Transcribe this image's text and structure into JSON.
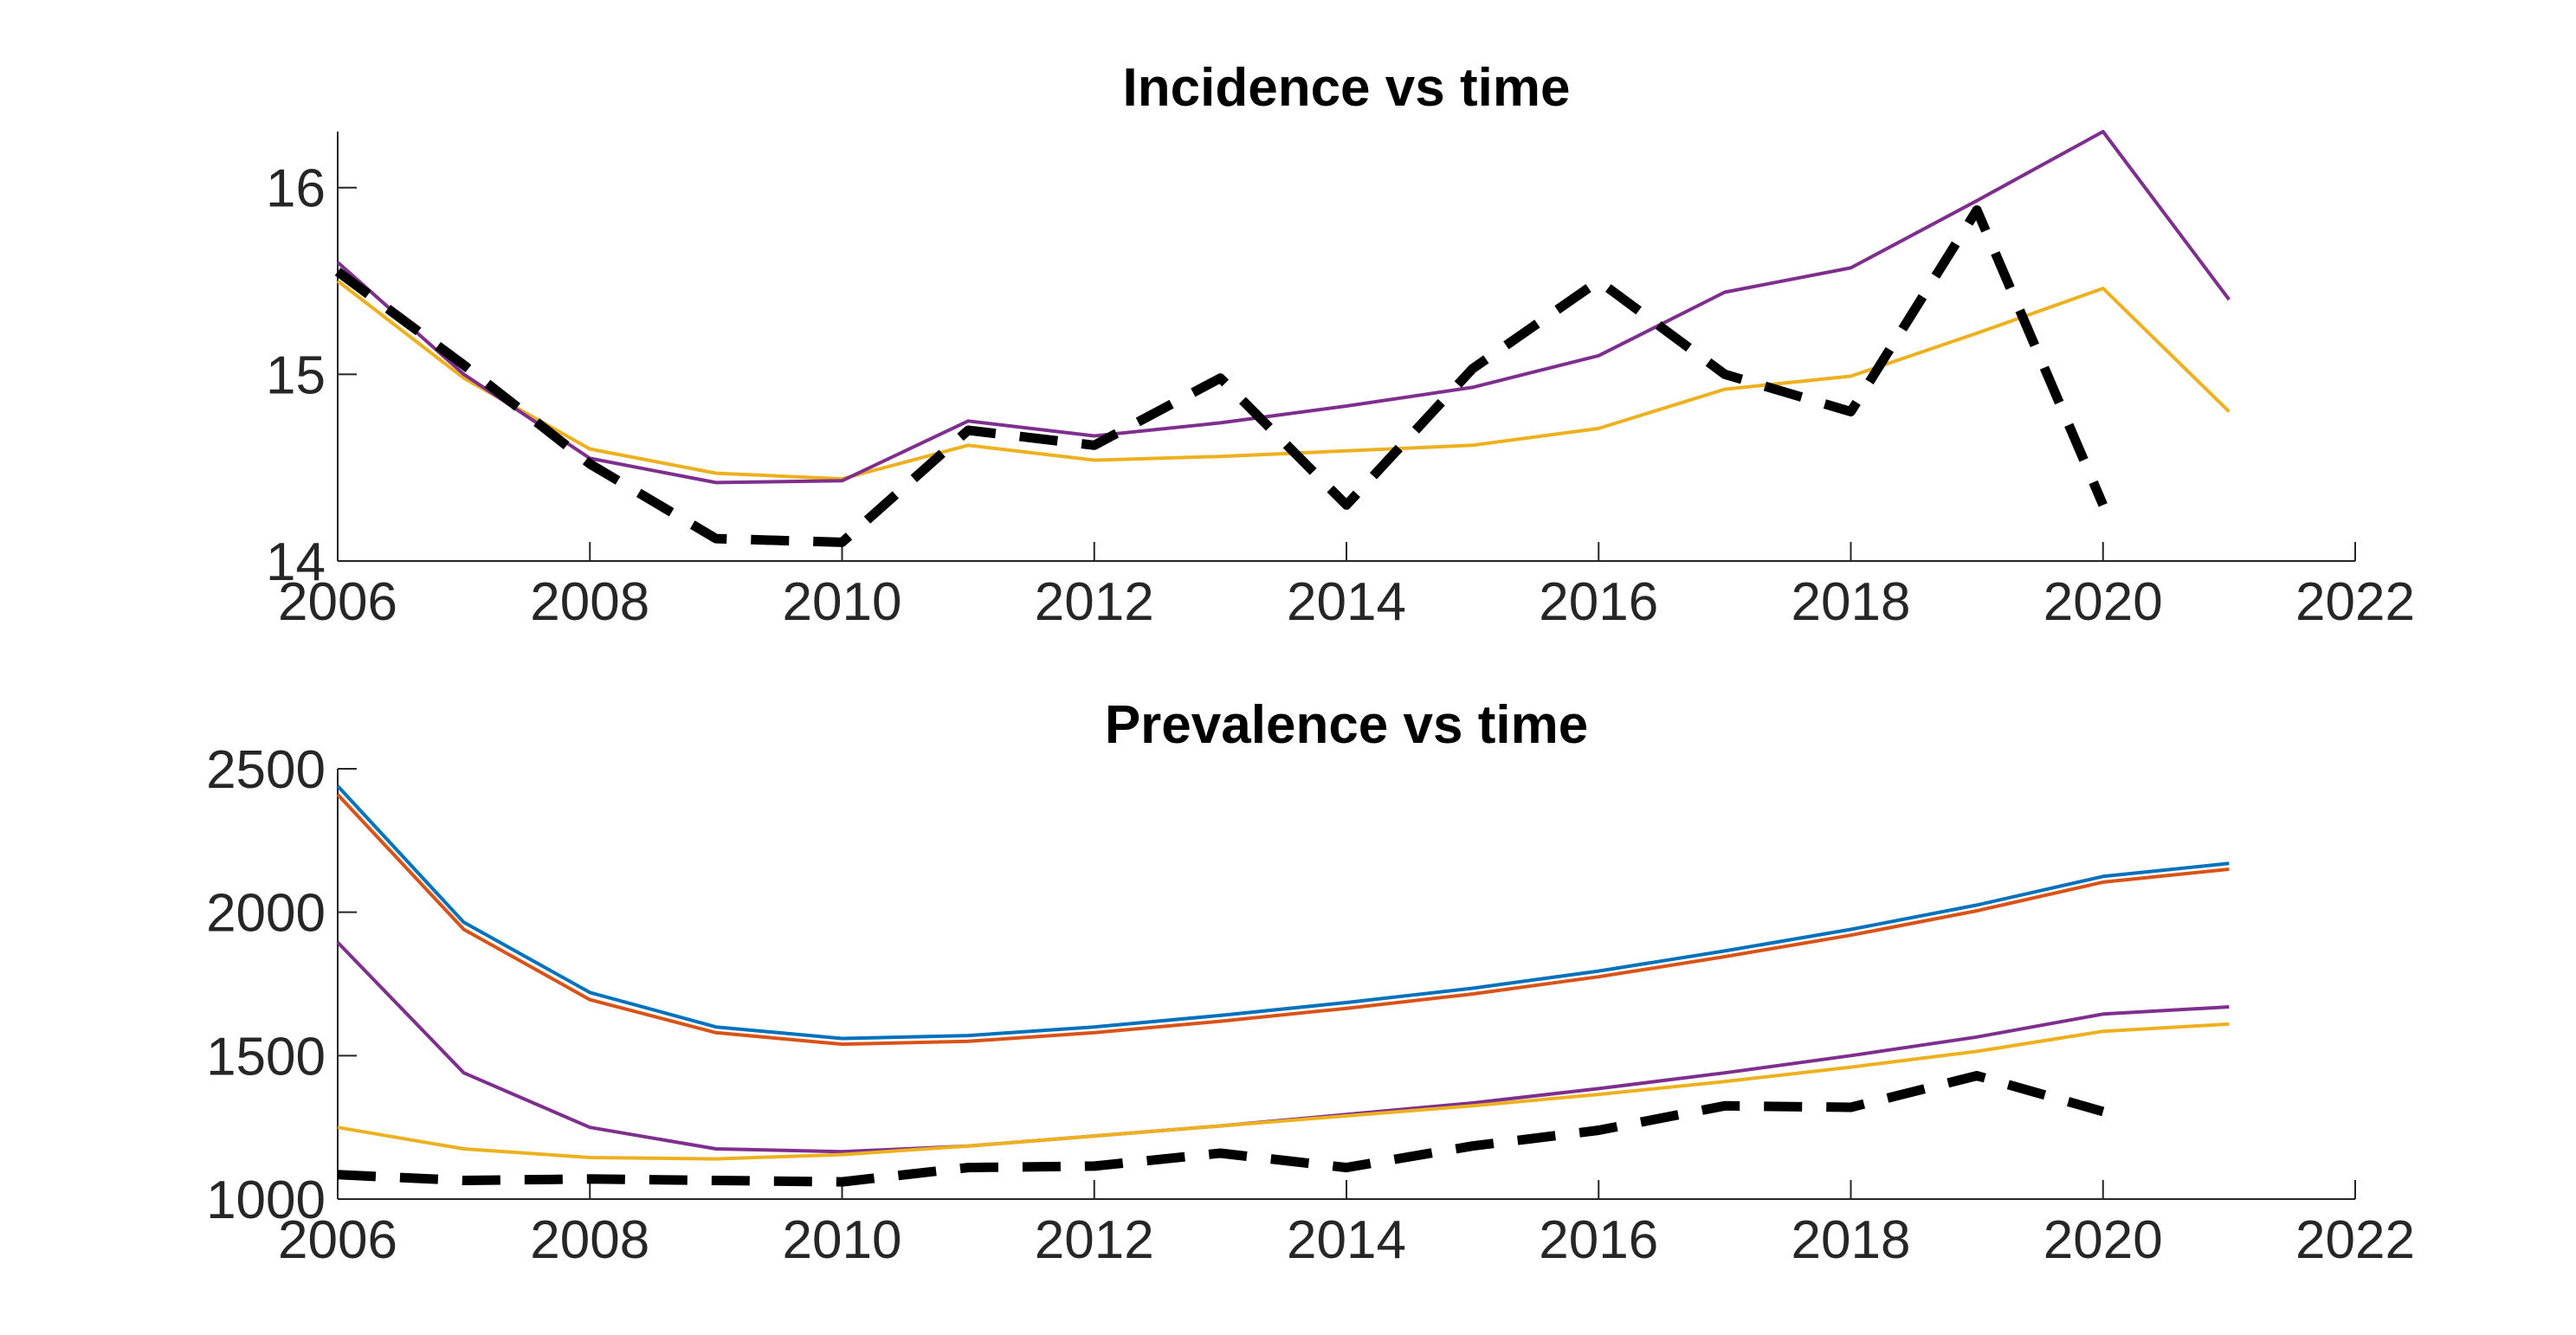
{
  "chart_data": [
    {
      "type": "line",
      "title": "Incidence vs time",
      "xlabel": "",
      "ylabel": "",
      "xlim": [
        2006,
        2022
      ],
      "ylim": [
        14,
        16.3
      ],
      "xticks": [
        2006,
        2008,
        2010,
        2012,
        2014,
        2016,
        2018,
        2020,
        2022
      ],
      "yticks": [
        14,
        15,
        16
      ],
      "grid": false,
      "legend": "none",
      "series": [
        {
          "color": "#EDB120",
          "style": "solid",
          "x": [
            2006,
            2007,
            2008,
            2009,
            2010,
            2011,
            2012,
            2013,
            2014,
            2015,
            2016,
            2017,
            2018,
            2019,
            2020,
            2021
          ],
          "y": [
            15.5,
            14.98,
            14.6,
            14.47,
            14.44,
            14.62,
            14.54,
            14.56,
            14.59,
            14.62,
            14.71,
            14.92,
            14.99,
            15.22,
            15.46,
            14.8
          ]
        },
        {
          "color": "#7E2F8E",
          "style": "solid",
          "x": [
            2006,
            2007,
            2008,
            2009,
            2010,
            2011,
            2012,
            2013,
            2014,
            2015,
            2016,
            2017,
            2018,
            2019,
            2020,
            2021
          ],
          "y": [
            15.6,
            15.0,
            14.55,
            14.42,
            14.43,
            14.75,
            14.67,
            14.74,
            14.83,
            14.93,
            15.1,
            15.44,
            15.57,
            15.93,
            16.3,
            15.4
          ]
        },
        {
          "color": "#000000",
          "style": "dashed",
          "x": [
            2006,
            2007,
            2008,
            2009,
            2010,
            2011,
            2012,
            2013,
            2014,
            2015,
            2016,
            2017,
            2018,
            2019,
            2020
          ],
          "y": [
            15.55,
            15.05,
            14.52,
            14.12,
            14.1,
            14.7,
            14.62,
            14.98,
            14.3,
            15.03,
            15.5,
            15.0,
            14.8,
            15.88,
            14.3
          ]
        }
      ]
    },
    {
      "type": "line",
      "title": "Prevalence vs time",
      "xlabel": "",
      "ylabel": "",
      "xlim": [
        2006,
        2022
      ],
      "ylim": [
        1000,
        2500
      ],
      "xticks": [
        2006,
        2008,
        2010,
        2012,
        2014,
        2016,
        2018,
        2020,
        2022
      ],
      "yticks": [
        1000,
        1500,
        2000,
        2500
      ],
      "grid": false,
      "legend": "none",
      "series": [
        {
          "color": "#0072BD",
          "style": "solid",
          "x": [
            2006,
            2007,
            2008,
            2009,
            2010,
            2011,
            2012,
            2013,
            2014,
            2015,
            2016,
            2017,
            2018,
            2019,
            2020,
            2021
          ],
          "y": [
            2440,
            1965,
            1720,
            1600,
            1560,
            1570,
            1600,
            1640,
            1685,
            1735,
            1795,
            1865,
            1940,
            2025,
            2125,
            2170
          ]
        },
        {
          "color": "#D95319",
          "style": "solid",
          "x": [
            2006,
            2007,
            2008,
            2009,
            2010,
            2011,
            2012,
            2013,
            2014,
            2015,
            2016,
            2017,
            2018,
            2019,
            2020,
            2021
          ],
          "y": [
            2410,
            1940,
            1695,
            1580,
            1540,
            1550,
            1580,
            1620,
            1665,
            1715,
            1775,
            1845,
            1920,
            2005,
            2105,
            2150
          ]
        },
        {
          "color": "#7E2F8E",
          "style": "solid",
          "x": [
            2006,
            2007,
            2008,
            2009,
            2010,
            2011,
            2012,
            2013,
            2014,
            2015,
            2016,
            2017,
            2018,
            2019,
            2020,
            2021
          ],
          "y": [
            1895,
            1440,
            1250,
            1175,
            1165,
            1185,
            1220,
            1255,
            1295,
            1335,
            1385,
            1440,
            1500,
            1565,
            1645,
            1670
          ]
        },
        {
          "color": "#EDB120",
          "style": "solid",
          "x": [
            2006,
            2007,
            2008,
            2009,
            2010,
            2011,
            2012,
            2013,
            2014,
            2015,
            2016,
            2017,
            2018,
            2019,
            2020,
            2021
          ],
          "y": [
            1250,
            1175,
            1145,
            1140,
            1155,
            1185,
            1220,
            1255,
            1290,
            1325,
            1365,
            1410,
            1460,
            1515,
            1585,
            1610
          ]
        },
        {
          "color": "#000000",
          "style": "dashed",
          "x": [
            2006,
            2007,
            2008,
            2009,
            2010,
            2011,
            2012,
            2013,
            2014,
            2015,
            2016,
            2017,
            2018,
            2019,
            2020
          ],
          "y": [
            1085,
            1065,
            1070,
            1065,
            1060,
            1110,
            1115,
            1160,
            1110,
            1185,
            1240,
            1325,
            1320,
            1430,
            1305
          ]
        }
      ]
    }
  ]
}
